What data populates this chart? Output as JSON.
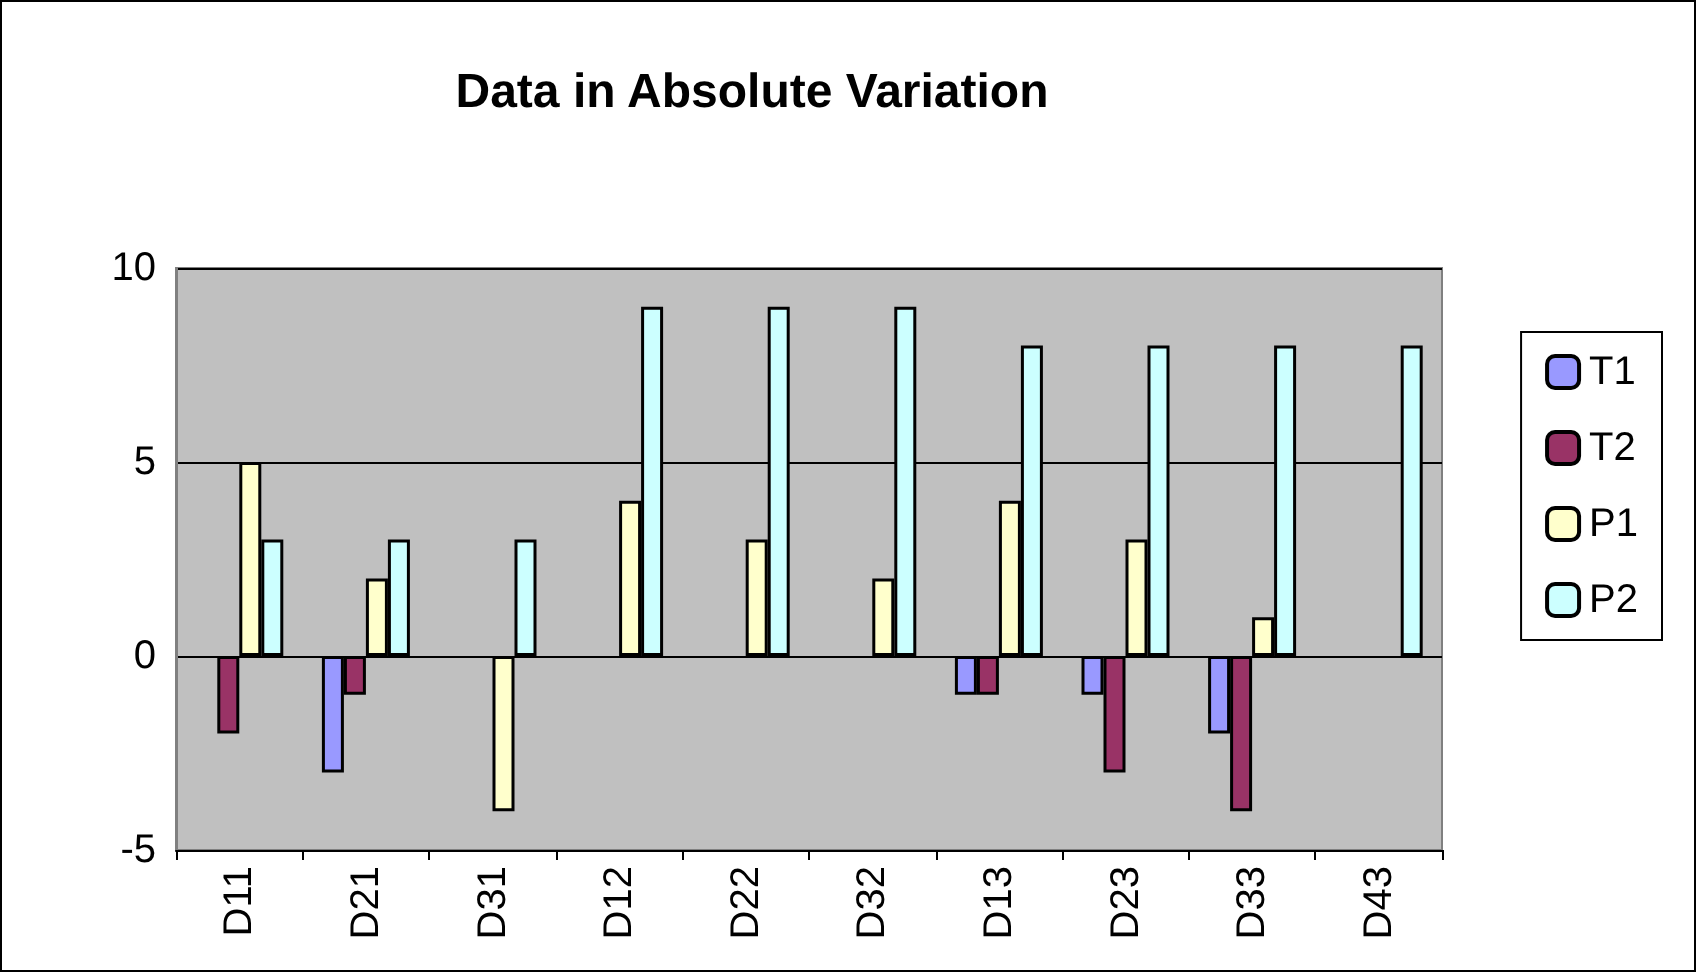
{
  "chart_data": {
    "type": "bar",
    "title": "Data in Absolute Variation",
    "categories": [
      "D11",
      "D21",
      "D31",
      "D12",
      "D22",
      "D32",
      "D13",
      "D23",
      "D33",
      "D43"
    ],
    "series": [
      {
        "name": "T1",
        "color": "#9999ff",
        "values": [
          0,
          -3,
          0,
          0,
          0,
          0,
          -1,
          -1,
          -2,
          0
        ]
      },
      {
        "name": "T2",
        "color": "#993366",
        "values": [
          -2,
          -1,
          0,
          0,
          0,
          0,
          -1,
          -3,
          -4,
          0
        ]
      },
      {
        "name": "P1",
        "color": "#ffffcc",
        "values": [
          5,
          2,
          -4,
          4,
          3,
          2,
          4,
          3,
          1,
          0
        ]
      },
      {
        "name": "P2",
        "color": "#ccffff",
        "values": [
          3,
          3,
          3,
          9,
          9,
          9,
          8,
          8,
          8,
          8
        ]
      }
    ],
    "ylim": [
      -5,
      10
    ],
    "yticks": [
      -5,
      0,
      5,
      10
    ],
    "grid": "y",
    "legend": "right"
  }
}
